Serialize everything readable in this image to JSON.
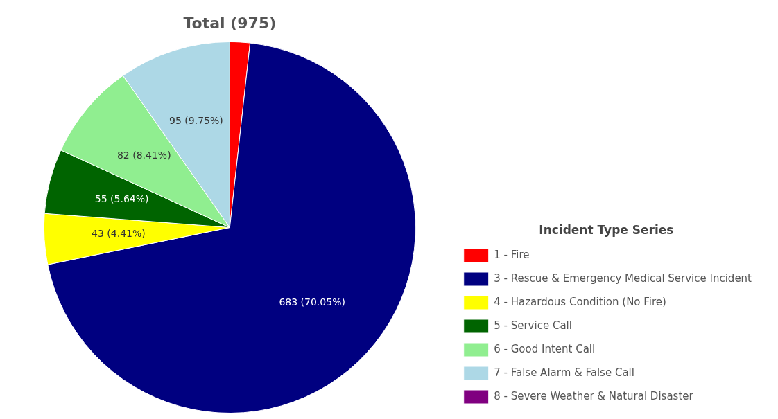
{
  "chart_data": {
    "type": "pie",
    "title": "Total (975)",
    "legend_title": "Incident Type Series",
    "legend": "bottom right",
    "categories": [
      "1 - Fire",
      "3 - Rescue & Emergency Medical Service Incident",
      "4 - Hazardous Condition (No Fire)",
      "5 - Service Call",
      "6 - Good Intent Call",
      "7 - False Alarm & False Call",
      "8 - Severe Weather & Natural Disaster"
    ],
    "values": [
      17,
      683,
      43,
      55,
      82,
      95,
      0
    ],
    "colors": [
      "#ff0000",
      "#000080",
      "#ffff00",
      "#006400",
      "#90ee90",
      "#add8e6",
      "#800080"
    ],
    "value_labels": [
      null,
      "683 (70.05%)",
      "43 (4.41%)",
      "55 (5.64%)",
      "82 (8.41%)",
      "95 (9.75%)",
      null
    ]
  }
}
